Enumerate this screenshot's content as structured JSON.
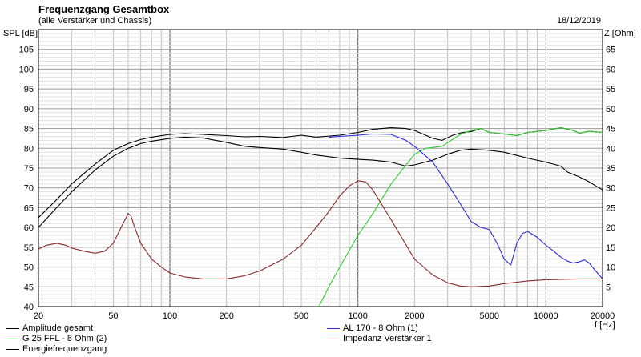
{
  "header": {
    "title": "Frequenzgang Gesamtbox",
    "subtitle": "(alle Verstärker und Chassis)",
    "date": "18/12/2019"
  },
  "chart_data": {
    "type": "line",
    "title": "Frequenzgang Gesamtbox",
    "subtitle": "(alle Verstärker und Chassis)",
    "xlabel": "f [Hz]",
    "ylabel": "SPL [dB]",
    "y2label": "Z [Ohm]",
    "xscale": "log",
    "xlim": [
      20,
      20000
    ],
    "ylim": [
      40,
      110
    ],
    "y2lim": [
      0,
      70
    ],
    "grid": true,
    "x_ticks": [
      "20",
      "50",
      "100",
      "200",
      "500",
      "1000",
      "2000",
      "5000",
      "10000",
      "20000"
    ],
    "x_tick_values": [
      20,
      50,
      100,
      200,
      500,
      1000,
      2000,
      5000,
      10000,
      20000
    ],
    "y_ticks": [
      "40",
      "45",
      "50",
      "55",
      "60",
      "65",
      "70",
      "75",
      "80",
      "85",
      "90",
      "95",
      "100",
      "105"
    ],
    "y2_ticks": [
      "5",
      "10",
      "15",
      "20",
      "25",
      "30",
      "35",
      "40",
      "45",
      "50",
      "55",
      "60",
      "65"
    ],
    "series": [
      {
        "name": "Amplitude gesamt",
        "color": "#000000",
        "axis": "left",
        "points": [
          [
            20,
            62.5
          ],
          [
            25,
            67
          ],
          [
            30,
            71
          ],
          [
            40,
            76
          ],
          [
            50,
            79.5
          ],
          [
            60,
            81.2
          ],
          [
            70,
            82.2
          ],
          [
            80,
            82.8
          ],
          [
            100,
            83.5
          ],
          [
            120,
            83.7
          ],
          [
            150,
            83.5
          ],
          [
            200,
            83.2
          ],
          [
            250,
            82.9
          ],
          [
            300,
            83
          ],
          [
            400,
            82.7
          ],
          [
            500,
            83.3
          ],
          [
            600,
            82.8
          ],
          [
            800,
            83.3
          ],
          [
            1000,
            84
          ],
          [
            1200,
            84.8
          ],
          [
            1500,
            85.2
          ],
          [
            1800,
            85
          ],
          [
            2000,
            84.5
          ],
          [
            2500,
            82.5
          ],
          [
            2800,
            82
          ],
          [
            3200,
            83.3
          ],
          [
            3600,
            84
          ],
          [
            4000,
            84.2
          ],
          [
            4500,
            85
          ],
          [
            5000,
            84
          ],
          [
            6000,
            83.6
          ],
          [
            7000,
            83.2
          ],
          [
            8000,
            84
          ],
          [
            10000,
            84.5
          ],
          [
            12000,
            85.2
          ],
          [
            14000,
            84.5
          ],
          [
            15000,
            83.8
          ],
          [
            17000,
            84.3
          ],
          [
            20000,
            84
          ]
        ]
      },
      {
        "name": "G 25 FFL - 8 Ohm (2)",
        "color": "#2ecc2e",
        "axis": "left",
        "points": [
          [
            620,
            40
          ],
          [
            700,
            45
          ],
          [
            800,
            50
          ],
          [
            1000,
            58
          ],
          [
            1200,
            63.5
          ],
          [
            1500,
            71
          ],
          [
            2000,
            78.5
          ],
          [
            2300,
            80
          ],
          [
            2800,
            80.5
          ],
          [
            3500,
            83.5
          ],
          [
            4000,
            84.5
          ],
          [
            4500,
            85
          ],
          [
            5000,
            84
          ],
          [
            6000,
            83.6
          ],
          [
            7000,
            83.2
          ],
          [
            8000,
            84
          ],
          [
            10000,
            84.5
          ],
          [
            12000,
            85.2
          ],
          [
            14000,
            84.5
          ],
          [
            15000,
            83.8
          ],
          [
            17000,
            84.3
          ],
          [
            20000,
            84
          ]
        ]
      },
      {
        "name": "Energiefrequenzgang",
        "color": "#000000",
        "axis": "left",
        "points": [
          [
            20,
            60
          ],
          [
            25,
            65
          ],
          [
            30,
            69
          ],
          [
            40,
            74.5
          ],
          [
            50,
            78
          ],
          [
            60,
            80
          ],
          [
            70,
            81.2
          ],
          [
            80,
            81.8
          ],
          [
            100,
            82.5
          ],
          [
            120,
            82.8
          ],
          [
            150,
            82.6
          ],
          [
            200,
            81.5
          ],
          [
            250,
            80.5
          ],
          [
            300,
            80.2
          ],
          [
            400,
            79.8
          ],
          [
            500,
            79
          ],
          [
            600,
            78.3
          ],
          [
            800,
            77.5
          ],
          [
            1000,
            77.2
          ],
          [
            1200,
            77
          ],
          [
            1500,
            76.5
          ],
          [
            1800,
            75.5
          ],
          [
            2000,
            75.8
          ],
          [
            2500,
            77
          ],
          [
            3000,
            78.5
          ],
          [
            3500,
            79.5
          ],
          [
            4000,
            79.8
          ],
          [
            5000,
            79.5
          ],
          [
            6000,
            79
          ],
          [
            7000,
            78.2
          ],
          [
            8000,
            77.5
          ],
          [
            10000,
            76.5
          ],
          [
            12000,
            75.5
          ],
          [
            13000,
            74
          ],
          [
            15000,
            72.8
          ],
          [
            17000,
            71.5
          ],
          [
            20000,
            69.5
          ]
        ]
      },
      {
        "name": "AL 170 - 8 Ohm (1)",
        "color": "#2a2adc",
        "axis": "left",
        "points": [
          [
            700,
            82.8
          ],
          [
            800,
            83
          ],
          [
            1000,
            83.3
          ],
          [
            1200,
            83.6
          ],
          [
            1500,
            83.5
          ],
          [
            1800,
            82
          ],
          [
            2000,
            80.5
          ],
          [
            2500,
            76.5
          ],
          [
            3000,
            71
          ],
          [
            3500,
            66
          ],
          [
            4000,
            61.5
          ],
          [
            4500,
            60
          ],
          [
            5000,
            59.5
          ],
          [
            5500,
            56
          ],
          [
            6000,
            52
          ],
          [
            6500,
            50.5
          ],
          [
            7000,
            56
          ],
          [
            7500,
            58.5
          ],
          [
            8000,
            59
          ],
          [
            9000,
            57.5
          ],
          [
            10000,
            55.5
          ],
          [
            11000,
            54
          ],
          [
            12000,
            52.5
          ],
          [
            13000,
            51.5
          ],
          [
            14000,
            51
          ],
          [
            15000,
            51.3
          ],
          [
            16000,
            51.8
          ],
          [
            17000,
            51
          ],
          [
            18000,
            49.5
          ],
          [
            20000,
            47
          ]
        ]
      },
      {
        "name": "Impedanz Verstärker 1",
        "color": "#8b2a2a",
        "axis": "right",
        "points": [
          [
            20,
            14.5
          ],
          [
            22,
            15.5
          ],
          [
            25,
            16
          ],
          [
            28,
            15.5
          ],
          [
            30,
            14.8
          ],
          [
            35,
            14
          ],
          [
            40,
            13.5
          ],
          [
            45,
            14
          ],
          [
            50,
            16
          ],
          [
            55,
            20
          ],
          [
            60,
            23.5
          ],
          [
            62,
            23
          ],
          [
            65,
            20
          ],
          [
            70,
            16
          ],
          [
            80,
            12
          ],
          [
            90,
            10
          ],
          [
            100,
            8.5
          ],
          [
            120,
            7.5
          ],
          [
            150,
            7
          ],
          [
            200,
            7
          ],
          [
            250,
            7.8
          ],
          [
            300,
            9
          ],
          [
            400,
            12
          ],
          [
            500,
            15.5
          ],
          [
            600,
            20
          ],
          [
            700,
            24
          ],
          [
            800,
            28
          ],
          [
            900,
            30.5
          ],
          [
            1000,
            31.8
          ],
          [
            1100,
            31.5
          ],
          [
            1200,
            29.5
          ],
          [
            1500,
            22
          ],
          [
            2000,
            12
          ],
          [
            2500,
            8
          ],
          [
            3000,
            6
          ],
          [
            3500,
            5.2
          ],
          [
            4000,
            5
          ],
          [
            5000,
            5.2
          ],
          [
            6000,
            5.8
          ],
          [
            8000,
            6.5
          ],
          [
            10000,
            6.8
          ],
          [
            15000,
            7
          ],
          [
            20000,
            7
          ]
        ]
      }
    ]
  },
  "legend": {
    "items": [
      {
        "label": "Amplitude gesamt",
        "color": "#000000"
      },
      {
        "label": "G 25 FFL - 8 Ohm (2)",
        "color": "#2ecc2e"
      },
      {
        "label": "Energiefrequenzgang",
        "color": "#000000"
      },
      {
        "label": "AL 170 - 8 Ohm (1)",
        "color": "#2a2adc"
      },
      {
        "label": "Impedanz Verstärker 1",
        "color": "#8b2a2a"
      }
    ]
  }
}
